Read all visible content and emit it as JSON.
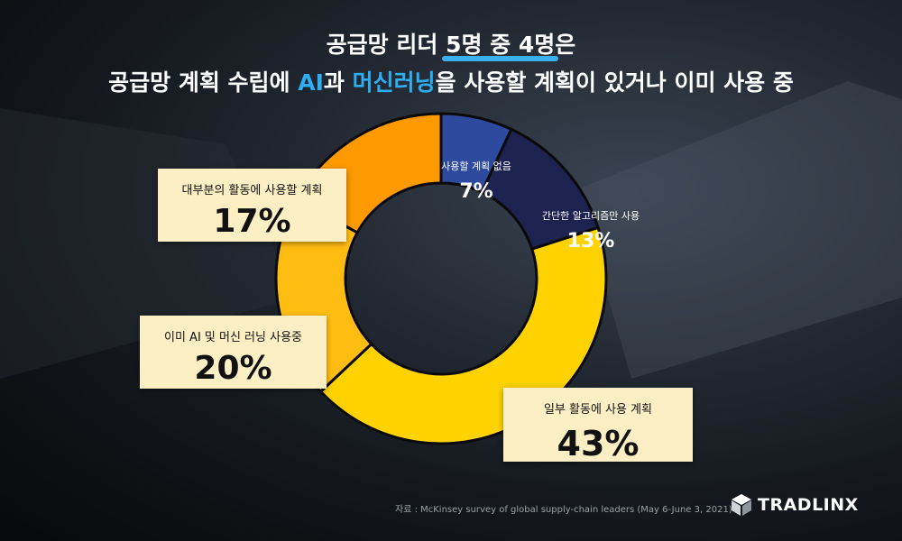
{
  "title": {
    "line1_pre": "공급망 리더 ",
    "line1_hl": "5명 중 4명",
    "line1_post": "은",
    "line2_a": "공급망 계획 수립에 ",
    "line2_ai": "AI",
    "line2_b": "과 ",
    "line2_ml": "머신러닝",
    "line2_c": "을 사용할 계획이 있거나 이미 사용 중"
  },
  "chart_data": {
    "type": "pie",
    "donut": true,
    "slices": [
      {
        "label": "사용할 계획 없음",
        "value": 7,
        "display": "7%",
        "color": "#2e4a9e"
      },
      {
        "label": "간단한 알고리즘만 사용",
        "value": 13,
        "display": "13%",
        "color": "#1c2350"
      },
      {
        "label": "일부 활동에 사용 계획",
        "value": 43,
        "display": "43%",
        "color": "#ffd200"
      },
      {
        "label": "이미 AI 및 머신 러닝 사용중",
        "value": 20,
        "display": "20%",
        "color": "#ffbd12"
      },
      {
        "label": "대부분의 활동에 사용할 계획",
        "value": 17,
        "display": "17%",
        "color": "#ff9900"
      }
    ]
  },
  "source": "자료 : McKinsey survey of global supply-chain leaders (May 6-June 3, 2021)",
  "logo": {
    "text": "TRADLINX",
    "icon": "tradlinx-cube-icon"
  }
}
